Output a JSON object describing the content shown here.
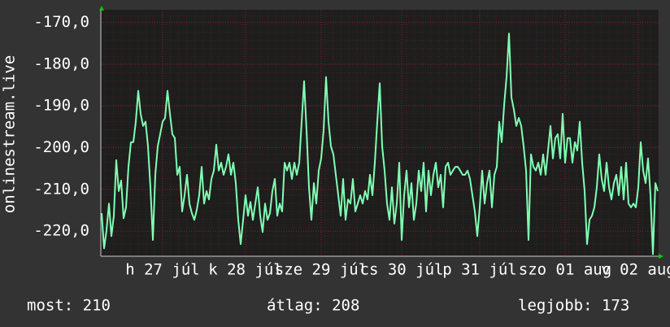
{
  "chart_data": {
    "type": "line",
    "ylabel": "onlinestream.live",
    "stats": [
      "most: 210",
      "átlag: 208",
      "legjobb: 173"
    ],
    "series": [
      {
        "name": "onlinestream.live",
        "color": "#80ffb4",
        "values": [
          -215.7,
          -224.1,
          -219.8,
          -213.4,
          -221.2,
          -216.3,
          -203.0,
          -210.4,
          -207.9,
          -216.9,
          -214.3,
          -204.6,
          -198.7,
          -198.7,
          -193.8,
          -186.4,
          -191.9,
          -194.8,
          -193.8,
          -199.7,
          -209.5,
          -222.1,
          -206.5,
          -199.7,
          -196.8,
          -193.8,
          -192.9,
          -186.4,
          -191.9,
          -196.8,
          -197.7,
          -206.5,
          -204.6,
          -215.3,
          -211.4,
          -206.5,
          -213.4,
          -215.7,
          -217.3,
          -214.9,
          -211.4,
          -204.6,
          -213.4,
          -210.4,
          -212.4,
          -207.5,
          -205.5,
          -199.3,
          -205.5,
          -203.6,
          -206.5,
          -204.6,
          -201.6,
          -206.5,
          -203.6,
          -208.5,
          -217.3,
          -223.1,
          -217.3,
          -211.4,
          -216.3,
          -213.0,
          -217.3,
          -213.4,
          -209.5,
          -216.3,
          -220.2,
          -213.4,
          -217.3,
          -215.7,
          -210.4,
          -207.5,
          -216.3,
          -213.4,
          -215.3,
          -203.6,
          -205.5,
          -203.6,
          -207.5,
          -203.6,
          -206.5,
          -203.6,
          -193.8,
          -184.1,
          -195.8,
          -209.5,
          -217.3,
          -208.5,
          -213.4,
          -205.5,
          -202.6,
          -195.8,
          -183.1,
          -193.8,
          -199.7,
          -201.6,
          -206.5,
          -211.4,
          -216.3,
          -207.5,
          -217.3,
          -212.4,
          -213.4,
          -207.5,
          -215.3,
          -213.4,
          -211.4,
          -213.4,
          -210.4,
          -212.4,
          -206.5,
          -211.4,
          -203.6,
          -193.8,
          -184.6,
          -199.7,
          -205.5,
          -213.4,
          -217.3,
          -209.5,
          -218.2,
          -213.4,
          -203.6,
          -222.1,
          -211.4,
          -205.5,
          -214.3,
          -208.5,
          -217.3,
          -213.4,
          -205.5,
          -210.4,
          -203.6,
          -215.3,
          -205.5,
          -211.4,
          -206.5,
          -203.6,
          -209.5,
          -206.5,
          -214.3,
          -204.6,
          -203.6,
          -206.5,
          -205.5,
          -204.6,
          -204.6,
          -205.5,
          -206.5,
          -206.5,
          -205.5,
          -207.5,
          -211.4,
          -215.3,
          -221.2,
          -214.3,
          -205.5,
          -213.4,
          -208.5,
          -205.5,
          -214.3,
          -206.5,
          -204.6,
          -193.8,
          -198.7,
          -189.9,
          -183.1,
          -172.7,
          -188.0,
          -190.9,
          -194.8,
          -192.9,
          -194.8,
          -199.7,
          -205.5,
          -222.1,
          -201.6,
          -204.6,
          -205.5,
          -203.6,
          -206.5,
          -201.6,
          -206.5,
          -200.7,
          -194.8,
          -202.6,
          -197.7,
          -196.8,
          -202.6,
          -191.9,
          -203.6,
          -197.7,
          -197.7,
          -203.6,
          -198.7,
          -200.7,
          -193.8,
          -203.6,
          -210.4,
          -223.1,
          -217.3,
          -216.3,
          -214.3,
          -209.5,
          -201.6,
          -207.5,
          -210.4,
          -203.6,
          -209.5,
          -212.4,
          -208.5,
          -206.5,
          -211.4,
          -204.6,
          -212.4,
          -203.6,
          -213.4,
          -214.3,
          -213.4,
          -214.3,
          -209.5,
          -198.7,
          -205.5,
          -208.5,
          -202.6,
          -211.4,
          -225.5,
          -208.5,
          -210.4
        ]
      }
    ],
    "xlim": [
      0,
      228
    ],
    "xticks": [
      {
        "value": 25,
        "label": "h 27 júl"
      },
      {
        "value": 59,
        "label": "k 28 júl"
      },
      {
        "value": 90,
        "label": "sze 29 júl"
      },
      {
        "value": 123,
        "label": "cs 30 júl"
      },
      {
        "value": 155,
        "label": "p 31 júl"
      },
      {
        "value": 190,
        "label": "szo 01 aug"
      },
      {
        "value": 220,
        "label": "v 02 aug"
      }
    ],
    "ylim": [
      -226,
      -167
    ],
    "yticks": [
      {
        "value": -220,
        "label": "-220,0"
      },
      {
        "value": -210,
        "label": "-210,0"
      },
      {
        "value": -200,
        "label": "-200,0"
      },
      {
        "value": -190,
        "label": "-190,0"
      },
      {
        "value": -180,
        "label": "-180,0"
      },
      {
        "value": -170,
        "label": "-170,0"
      }
    ],
    "grid": true
  }
}
